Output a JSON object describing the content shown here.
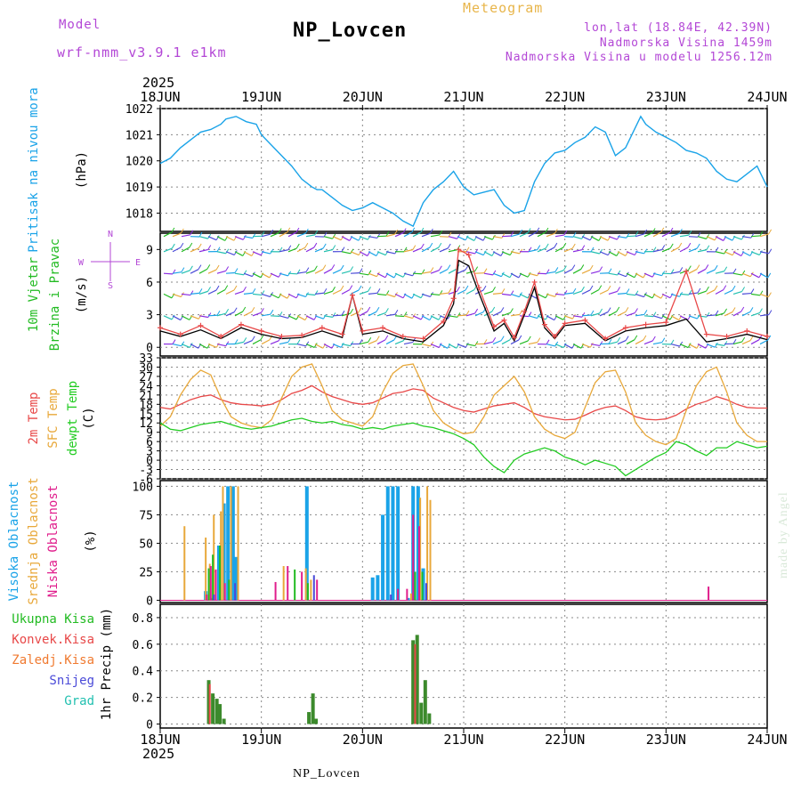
{
  "header": {
    "model_label": "Model",
    "model_name": "wrf-nmm_v3.9.1 e1km",
    "station": "NP_Lovcen",
    "product": "Meteogram",
    "lonlat": "lon,lat (18.84E, 42.39N)",
    "elevation": "Nadmorska Visina 1459m",
    "model_elevation": "Nadmorska Visina u modelu 1256.12m"
  },
  "footer": {
    "station": "NP_Lovcen",
    "credit": "made by Angel"
  },
  "colors": {
    "pressure": "#1aa3e8",
    "wind_label": "#22bb22",
    "temp2m": "#e84848",
    "sfc": "#e8a83a",
    "dew": "#22cc22",
    "high": "#1aa3e8",
    "mid": "#e8a83a",
    "low": "#e01e8c",
    "total": "#22bb22",
    "conv": "#e84848",
    "frozen": "#f07a30",
    "snow": "#4a4ad8",
    "graupel": "#22c0b0",
    "units_purple": "#b347d6"
  },
  "chart_data": [
    {
      "type": "line",
      "id": "pressure",
      "ylabel": "Pritisak na nivou mora",
      "units": "(hPa)",
      "year": "2025",
      "categories": [
        "18JUN",
        "19JUN",
        "20JUN",
        "21JUN",
        "22JUN",
        "23JUN",
        "24JUN"
      ],
      "ylim": [
        1017.3,
        1022.0
      ],
      "yticks": [
        1018,
        1019,
        1020,
        1021,
        1022
      ],
      "x": [
        0,
        0.1,
        0.2,
        0.3,
        0.4,
        0.5,
        0.6,
        0.65,
        0.75,
        0.85,
        0.95,
        1.0,
        1.1,
        1.2,
        1.3,
        1.4,
        1.5,
        1.55,
        1.6,
        1.7,
        1.8,
        1.9,
        2.0,
        2.1,
        2.2,
        2.3,
        2.4,
        2.5,
        2.6,
        2.7,
        2.8,
        2.9,
        3.0,
        3.1,
        3.2,
        3.3,
        3.4,
        3.5,
        3.6,
        3.7,
        3.8,
        3.9,
        4.0,
        4.1,
        4.2,
        4.3,
        4.4,
        4.5,
        4.6,
        4.7,
        4.75,
        4.8,
        4.9,
        5.0,
        5.1,
        5.2,
        5.3,
        5.4,
        5.5,
        5.6,
        5.7,
        5.8,
        5.9,
        6.0
      ],
      "values": [
        1019.9,
        1020.1,
        1020.5,
        1020.8,
        1021.1,
        1021.2,
        1021.4,
        1021.6,
        1021.7,
        1021.5,
        1021.4,
        1021.0,
        1020.6,
        1020.2,
        1019.8,
        1019.3,
        1019.0,
        1018.9,
        1018.9,
        1018.6,
        1018.3,
        1018.1,
        1018.2,
        1018.4,
        1018.2,
        1018.0,
        1017.7,
        1017.5,
        1018.4,
        1018.9,
        1019.2,
        1019.6,
        1019.0,
        1018.7,
        1018.8,
        1018.9,
        1018.3,
        1018.0,
        1018.1,
        1019.2,
        1019.9,
        1020.3,
        1020.4,
        1020.7,
        1020.9,
        1021.3,
        1021.1,
        1020.2,
        1020.5,
        1021.3,
        1021.7,
        1021.4,
        1021.1,
        1020.9,
        1020.7,
        1020.4,
        1020.3,
        1020.1,
        1019.6,
        1019.3,
        1019.2,
        1019.5,
        1019.8,
        1019.0
      ],
      "color": "#1aa3e8"
    },
    {
      "type": "line",
      "id": "wind",
      "ylabel": "10m Vjetar",
      "ylabel2": "Brzina i Pravac",
      "units": "(m/s)",
      "compass": [
        "N",
        "W",
        "E",
        "S"
      ],
      "ylim": [
        -0.8,
        10.5
      ],
      "yticks": [
        0,
        3,
        6,
        9
      ],
      "series": [
        {
          "x": [
            0,
            0.2,
            0.4,
            0.6,
            0.8,
            1.0,
            1.2,
            1.4,
            1.6,
            1.8,
            1.9,
            2.0,
            2.2,
            2.4,
            2.6,
            2.8,
            2.9,
            2.95,
            3.05,
            3.15,
            3.3,
            3.4,
            3.5,
            3.6,
            3.7,
            3.8,
            3.9,
            4.0,
            4.2,
            4.4,
            4.6,
            4.8,
            5.0,
            5.2,
            5.4,
            5.6,
            5.8,
            6.0
          ],
          "values": [
            1.5,
            1.0,
            1.6,
            0.8,
            1.8,
            1.2,
            0.8,
            0.9,
            1.5,
            0.9,
            4.8,
            1.2,
            1.5,
            0.8,
            0.5,
            2.0,
            4.0,
            8.0,
            7.5,
            5.0,
            1.5,
            2.2,
            0.6,
            3.0,
            5.5,
            1.8,
            0.8,
            2.0,
            2.2,
            0.6,
            1.5,
            1.8,
            2.0,
            2.6,
            0.5,
            0.8,
            1.2,
            0.7
          ],
          "color": "#000000"
        },
        {
          "x": [
            0,
            0.2,
            0.4,
            0.6,
            0.8,
            1.0,
            1.2,
            1.4,
            1.6,
            1.8,
            1.9,
            2.0,
            2.2,
            2.4,
            2.6,
            2.8,
            2.9,
            2.95,
            3.05,
            3.15,
            3.3,
            3.4,
            3.5,
            3.6,
            3.7,
            3.8,
            3.9,
            4.0,
            4.2,
            4.4,
            4.6,
            4.8,
            5.0,
            5.2,
            5.4,
            5.6,
            5.8,
            6.0
          ],
          "values": [
            1.8,
            1.2,
            2.0,
            1.0,
            2.1,
            1.5,
            1.0,
            1.1,
            1.8,
            1.2,
            4.8,
            1.5,
            1.8,
            1.0,
            0.8,
            2.4,
            4.5,
            9.0,
            8.5,
            5.5,
            1.9,
            2.5,
            0.9,
            3.3,
            6.0,
            2.1,
            1.0,
            2.2,
            2.5,
            0.8,
            1.8,
            2.1,
            2.3,
            7.0,
            1.2,
            1.0,
            1.5,
            1.0
          ],
          "color": "#e84848"
        }
      ],
      "barb_rows": [
        0.3,
        2.9,
        4.9,
        6.8,
        8.8,
        10.2
      ]
    },
    {
      "type": "line",
      "id": "temperature",
      "ylabel": "2m Temp",
      "ylabel2": "SFC Temp",
      "ylabel3": "dewpt Temp",
      "units": "(C)",
      "ylim": [
        -6,
        33
      ],
      "yticks": [
        -6,
        -3,
        0,
        3,
        6,
        9,
        12,
        15,
        18,
        21,
        24,
        27,
        30,
        33
      ],
      "x": [
        0,
        0.1,
        0.2,
        0.3,
        0.4,
        0.5,
        0.6,
        0.7,
        0.8,
        0.9,
        1.0,
        1.1,
        1.2,
        1.3,
        1.4,
        1.5,
        1.6,
        1.7,
        1.8,
        1.9,
        2.0,
        2.1,
        2.2,
        2.3,
        2.4,
        2.5,
        2.6,
        2.7,
        2.8,
        2.9,
        3.0,
        3.1,
        3.2,
        3.3,
        3.4,
        3.5,
        3.6,
        3.7,
        3.8,
        3.9,
        4.0,
        4.1,
        4.2,
        4.3,
        4.4,
        4.5,
        4.6,
        4.7,
        4.8,
        4.9,
        5.0,
        5.1,
        5.2,
        5.3,
        5.4,
        5.5,
        5.6,
        5.7,
        5.8,
        5.9,
        6.0
      ],
      "series": [
        {
          "name": "2m Temp",
          "color": "#e84848",
          "values": [
            17,
            16.5,
            18,
            19.5,
            20.5,
            21,
            19.5,
            18.5,
            18,
            17.8,
            17.5,
            18,
            19.5,
            21.5,
            22.5,
            24,
            22,
            20.5,
            19.5,
            18.5,
            18,
            18.5,
            20,
            21.5,
            22,
            23,
            22.5,
            20,
            18.5,
            17,
            16,
            15.5,
            16.5,
            17.5,
            18,
            18.5,
            17,
            15,
            14,
            13.5,
            13,
            13.2,
            14.5,
            16,
            17,
            17.5,
            16,
            14,
            13.2,
            13,
            13.3,
            14.5,
            16.5,
            18,
            19,
            20.5,
            19.5,
            18,
            17,
            16.8,
            16.8
          ]
        },
        {
          "name": "SFC Temp",
          "color": "#e8a83a",
          "values": [
            11,
            14,
            21,
            26,
            29,
            27.5,
            20,
            14,
            12,
            11,
            10.5,
            13,
            20,
            27,
            30,
            31,
            24,
            16,
            13,
            12,
            11,
            14,
            22,
            28,
            30.5,
            31,
            24,
            16,
            12,
            10,
            8.5,
            9,
            14,
            21,
            24,
            27,
            22,
            14,
            10,
            8,
            7,
            9,
            17,
            25,
            28.5,
            29,
            22,
            12,
            8,
            6,
            5,
            7,
            16,
            24,
            28.5,
            30,
            22,
            12,
            8,
            6,
            6
          ]
        },
        {
          "name": "dewpt Temp",
          "color": "#22cc22",
          "values": [
            12,
            10,
            9.5,
            10.5,
            11.5,
            12,
            12.5,
            11.5,
            10.5,
            10,
            10.5,
            11,
            12,
            13,
            13.5,
            12.5,
            12,
            12.5,
            11.5,
            11,
            10,
            10.5,
            10,
            11,
            11.5,
            12,
            11,
            10.5,
            9.5,
            8.5,
            7,
            5,
            1,
            -2,
            -4,
            0,
            2,
            3,
            4,
            3,
            1,
            0,
            -1.5,
            0,
            -1,
            -2,
            -5,
            -3,
            -1,
            1,
            2.5,
            6,
            5,
            3,
            1.5,
            4,
            4,
            6,
            5,
            4,
            4.5
          ]
        }
      ]
    },
    {
      "type": "bar",
      "id": "clouds",
      "ylabel": "Visoka Oblacnost",
      "ylabel2": "Srednja Oblacnost",
      "ylabel3": "Niska Oblacnost",
      "units": "(%)",
      "ylim": [
        -2,
        105
      ],
      "yticks": [
        0,
        25,
        50,
        75,
        100
      ],
      "series": [
        {
          "name": "Visoka Oblacnost",
          "color": "#1aa3e8",
          "x": [
            0.45,
            0.5,
            0.58,
            0.63,
            0.67,
            0.72,
            0.75,
            1.45,
            2.1,
            2.15,
            2.2,
            2.25,
            2.3,
            2.35,
            2.45,
            2.5,
            2.55,
            2.6
          ],
          "values": [
            8,
            2,
            48,
            85,
            100,
            100,
            38,
            100,
            20,
            22,
            75,
            100,
            100,
            100,
            2,
            100,
            100,
            28
          ]
        },
        {
          "name": "Srednja Oblacnost",
          "color": "#e8a83a",
          "x": [
            0.24,
            0.45,
            0.49,
            0.53,
            0.6,
            0.62,
            0.7,
            0.77,
            1.22,
            1.44,
            1.49,
            2.48,
            2.57,
            2.64,
            2.67
          ],
          "values": [
            65,
            55,
            32,
            75,
            78,
            100,
            100,
            100,
            30,
            28,
            18,
            6,
            90,
            100,
            88
          ]
        },
        {
          "name": "Niska Oblacnost",
          "color": "#e01e8c",
          "x": [
            0.46,
            0.5,
            0.55,
            0.64,
            1.14,
            1.26,
            1.4,
            1.55,
            2.35,
            2.44,
            2.5,
            2.56,
            5.42
          ],
          "values": [
            5,
            30,
            27,
            15,
            16,
            30,
            25,
            18,
            10,
            10,
            75,
            65,
            12
          ]
        },
        {
          "name": "Ukupna Kisa",
          "color": "#22bb22",
          "x": [
            0.48,
            0.52,
            0.59,
            0.68,
            1.33,
            1.46,
            2.52,
            2.59
          ],
          "values": [
            28,
            40,
            48,
            18,
            27,
            15,
            25,
            25
          ]
        },
        {
          "name": "Snijeg",
          "color": "#4a4ad8",
          "x": [
            0.53,
            0.74,
            1.52,
            2.28,
            2.63
          ],
          "values": [
            5,
            15,
            22,
            5,
            15
          ]
        }
      ]
    },
    {
      "type": "bar",
      "id": "precip",
      "ylabel": "1hr Precip",
      "units": "(mm)",
      "year": "2025",
      "categories": [
        "18JUN",
        "19JUN",
        "20JUN",
        "21JUN",
        "22JUN",
        "23JUN",
        "24JUN"
      ],
      "legend": [
        "Ukupna Kisa",
        "Konvek.Kisa",
        "Zaledj.Kisa",
        "Snijeg",
        "Grad"
      ],
      "ylim": [
        -0.03,
        0.9
      ],
      "yticks": [
        0,
        0.2,
        0.4,
        0.6,
        0.8
      ],
      "series": [
        {
          "name": "Ukupna Kisa",
          "color": "#3c8a2c",
          "x": [
            0.48,
            0.52,
            0.56,
            0.59,
            0.63,
            1.47,
            1.51,
            1.54,
            2.5,
            2.54,
            2.58,
            2.62,
            2.66
          ],
          "values": [
            0.33,
            0.23,
            0.19,
            0.15,
            0.04,
            0.09,
            0.23,
            0.04,
            0.63,
            0.67,
            0.16,
            0.33,
            0.08
          ]
        },
        {
          "name": "Konvek.Kisa",
          "color": "#e84848",
          "x": [
            0.49,
            2.52
          ],
          "values": [
            0.3,
            0.6
          ]
        }
      ]
    }
  ]
}
